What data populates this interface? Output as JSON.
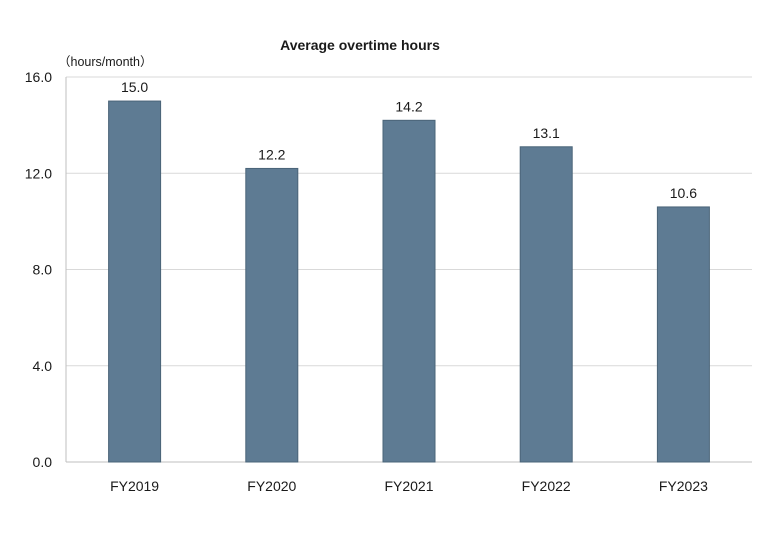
{
  "chart_data": {
    "type": "bar",
    "title": "Average overtime hours",
    "unit_label": "（hours/month）",
    "categories": [
      "FY2019",
      "FY2020",
      "FY2021",
      "FY2022",
      "FY2023"
    ],
    "values": [
      15.0,
      12.2,
      14.2,
      13.1,
      10.6
    ],
    "value_labels": [
      "15.0",
      "12.2",
      "14.2",
      "13.1",
      "10.6"
    ],
    "ylim": [
      0,
      16
    ],
    "yticks": [
      0,
      4,
      8,
      12,
      16
    ],
    "ytick_labels": [
      "0.0",
      "4.0",
      "8.0",
      "12.0",
      "16.0"
    ],
    "xlabel": "",
    "ylabel": "",
    "grid": true,
    "legend": "none",
    "bar_color": "#5e7b93",
    "grid_color": "#d9d9d9",
    "axis_color": "#bfbfbf"
  }
}
